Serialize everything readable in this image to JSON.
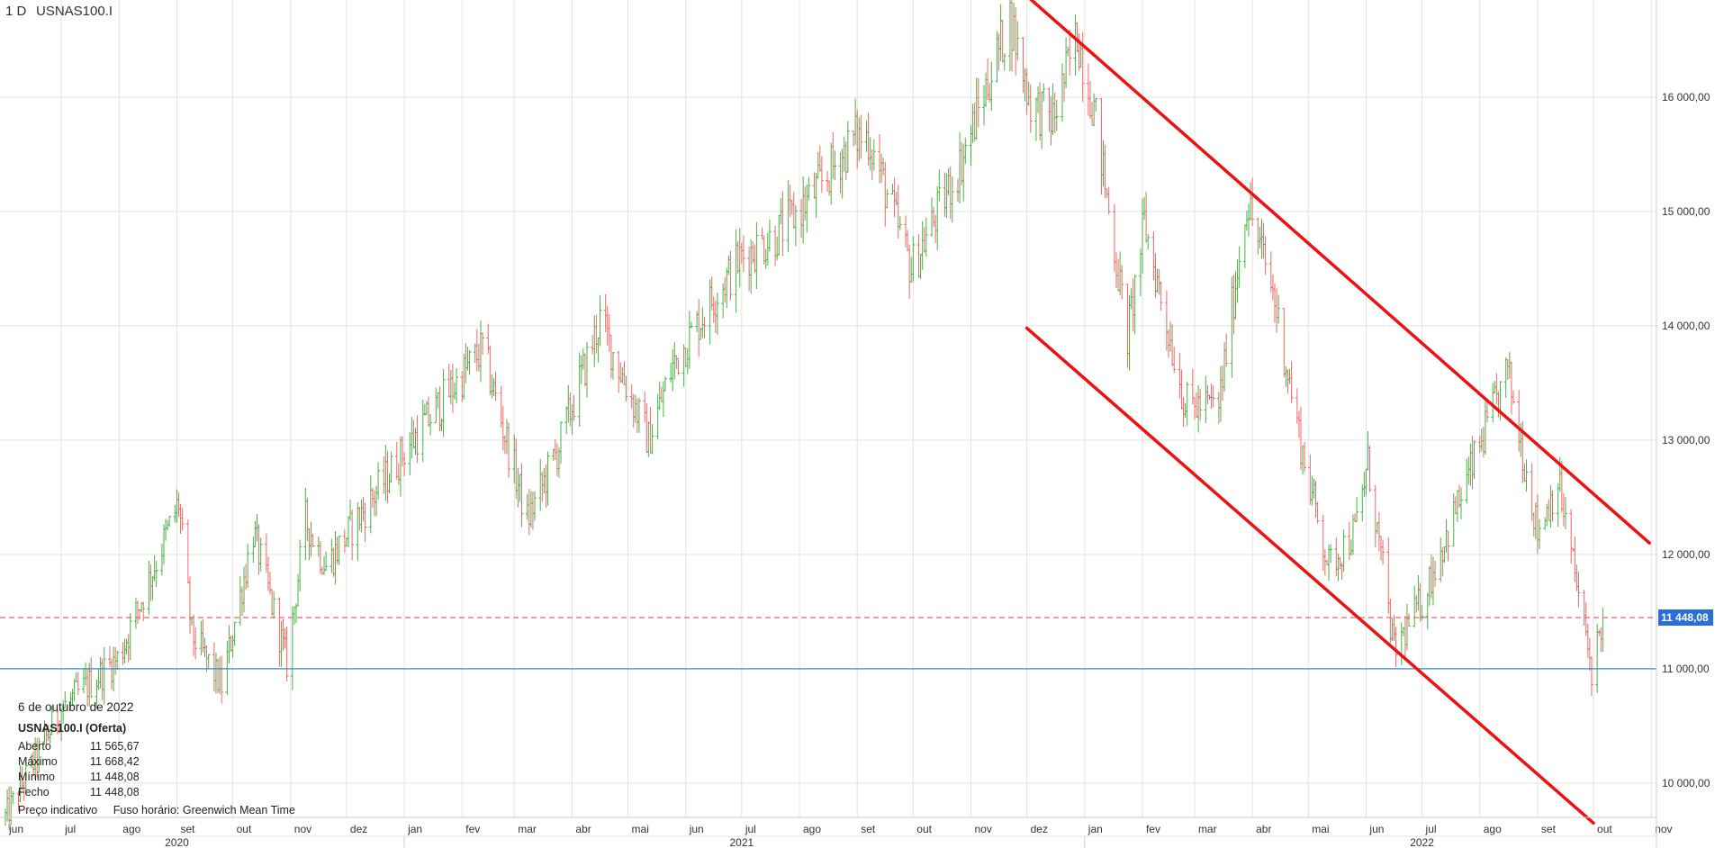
{
  "header": {
    "timeframe": "1 D",
    "symbol": "USNAS100.I"
  },
  "info": {
    "date": "6 de outubro de 2022",
    "title": "USNAS100.I (Oferta)",
    "rows": [
      {
        "label": "Aberto",
        "value": "11 565,67"
      },
      {
        "label": "Máximo",
        "value": "11 668,42"
      },
      {
        "label": "Mínimo",
        "value": "11 448,08"
      },
      {
        "label": "Fecho",
        "value": "11 448,08"
      }
    ],
    "footer_price": "Preço indicativo",
    "footer_tz": "Fuso horário: Greenwich Mean Time"
  },
  "colors": {
    "up": "#44b344",
    "down": "#ee6666",
    "grid": "#e3e3e3",
    "channel": "#ee1111",
    "support": "#3388cc",
    "price_badge": "#2a6fd6"
  },
  "chart_data": {
    "type": "ohlc",
    "symbol": "USNAS100.I",
    "timeframe": "1 D",
    "ylim": [
      9700,
      16850
    ],
    "y_ticks": [
      10000,
      11000,
      12000,
      13000,
      14000,
      15000,
      16000
    ],
    "y_tick_labels": [
      "10 000,00",
      "11 000,00",
      "12 000,00",
      "13 000,00",
      "14 000,00",
      "15 000,00",
      "16 000,00"
    ],
    "x_month_labels": [
      "jun",
      "jul",
      "ago",
      "set",
      "out",
      "nov",
      "dez",
      "jan",
      "fev",
      "mar",
      "abr",
      "mai",
      "jun",
      "jul",
      "ago",
      "set",
      "out",
      "nov",
      "dez",
      "jan",
      "fev",
      "mar",
      "abr",
      "mai",
      "jun",
      "jul",
      "ago",
      "set",
      "out",
      "nov"
    ],
    "x_year_labels": [
      "2020",
      "2021",
      "2022"
    ],
    "current_price": 11448.08,
    "current_price_label": "11 448,08",
    "support_level": 11000,
    "channel_upper": {
      "start": [
        "2021-11-23",
        17000
      ],
      "end": [
        "2022-10-31",
        12100
      ]
    },
    "channel_lower": {
      "start": [
        "2021-12-01",
        13980
      ],
      "end": [
        "2022-10-01",
        9650
      ]
    },
    "price_path": [
      [
        "2020-06-01",
        9700
      ],
      [
        "2020-07-01",
        10650
      ],
      [
        "2020-08-01",
        11100
      ],
      [
        "2020-09-02",
        12450
      ],
      [
        "2020-09-09",
        11300
      ],
      [
        "2020-09-25",
        10850
      ],
      [
        "2020-10-12",
        12200
      ],
      [
        "2020-10-30",
        11050
      ],
      [
        "2020-11-09",
        12300
      ],
      [
        "2020-11-20",
        11900
      ],
      [
        "2020-12-31",
        12880
      ],
      [
        "2021-02-12",
        13800
      ],
      [
        "2021-03-08",
        12300
      ],
      [
        "2021-03-24",
        12900
      ],
      [
        "2021-04-16",
        14050
      ],
      [
        "2021-05-12",
        13000
      ],
      [
        "2021-05-25",
        13650
      ],
      [
        "2021-06-14",
        14200
      ],
      [
        "2021-07-01",
        14600
      ],
      [
        "2021-07-20",
        14800
      ],
      [
        "2021-08-06",
        15100
      ],
      [
        "2021-08-31",
        15650
      ],
      [
        "2021-09-07",
        15650
      ],
      [
        "2021-09-30",
        14500
      ],
      [
        "2021-10-26",
        15400
      ],
      [
        "2021-11-22",
        16700
      ],
      [
        "2021-12-03",
        15950
      ],
      [
        "2021-12-15",
        15800
      ],
      [
        "2021-12-28",
        16550
      ],
      [
        "2022-01-06",
        15900
      ],
      [
        "2022-01-24",
        13900
      ],
      [
        "2022-02-02",
        14900
      ],
      [
        "2022-02-24",
        13300
      ],
      [
        "2022-03-14",
        13300
      ],
      [
        "2022-03-29",
        15100
      ],
      [
        "2022-04-12",
        14300
      ],
      [
        "2022-04-29",
        12800
      ],
      [
        "2022-05-12",
        11900
      ],
      [
        "2022-05-26",
        12200
      ],
      [
        "2022-06-02",
        12800
      ],
      [
        "2022-06-16",
        11150
      ],
      [
        "2022-07-01",
        11600
      ],
      [
        "2022-08-16",
        13600
      ],
      [
        "2022-09-01",
        12200
      ],
      [
        "2022-09-12",
        12650
      ],
      [
        "2022-09-30",
        11000
      ],
      [
        "2022-10-06",
        11448.08
      ]
    ]
  }
}
